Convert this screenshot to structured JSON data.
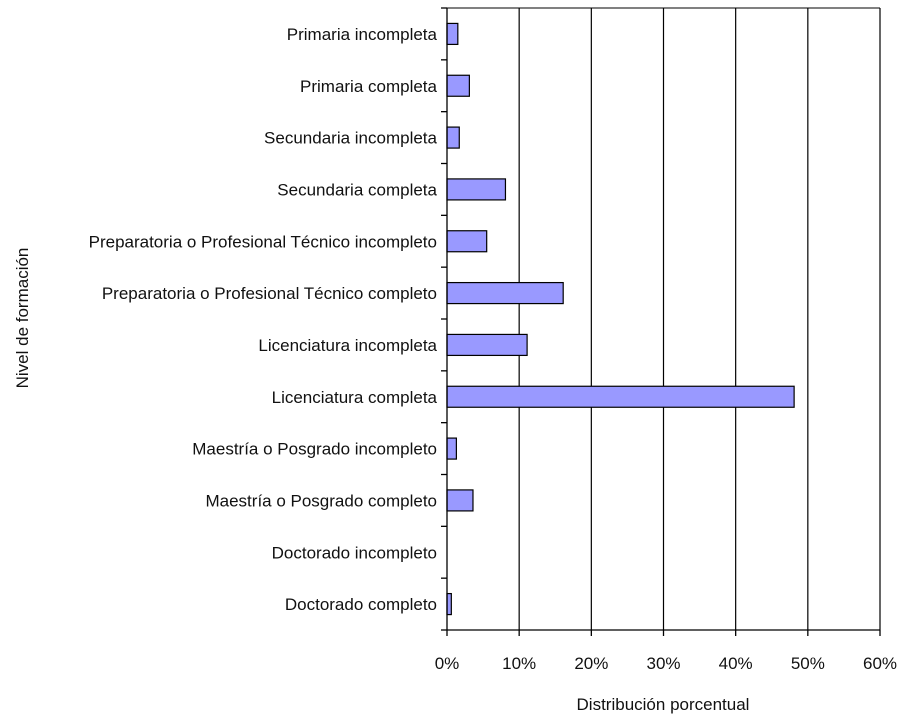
{
  "chart_data": {
    "type": "bar",
    "orientation": "horizontal",
    "categories": [
      "Primaria incompleta",
      "Primaria completa",
      "Secundaria incompleta",
      "Secundaria completa",
      "Preparatoria o Profesional Técnico incompleto",
      "Preparatoria o Profesional Técnico completo",
      "Licenciatura incompleta",
      "Licenciatura completa",
      "Maestría o Posgrado incompleto",
      "Maestría o Posgrado completo",
      "Doctorado incompleto",
      "Doctorado completo"
    ],
    "values": [
      1.5,
      3.1,
      1.7,
      8.1,
      5.5,
      16.1,
      11.1,
      48.1,
      1.3,
      3.6,
      0.0,
      0.6
    ],
    "title": "",
    "xlabel": "Distribución porcentual",
    "ylabel": "Nivel de formación",
    "xlim": [
      0,
      60
    ],
    "xticks": [
      0,
      10,
      20,
      30,
      40,
      50,
      60
    ],
    "xtick_labels": [
      "0%",
      "10%",
      "20%",
      "30%",
      "40%",
      "50%",
      "60%"
    ],
    "grid": "vertical",
    "legend": "none",
    "bar_color": "#9999ff",
    "bar_edge_color": "#000000"
  }
}
